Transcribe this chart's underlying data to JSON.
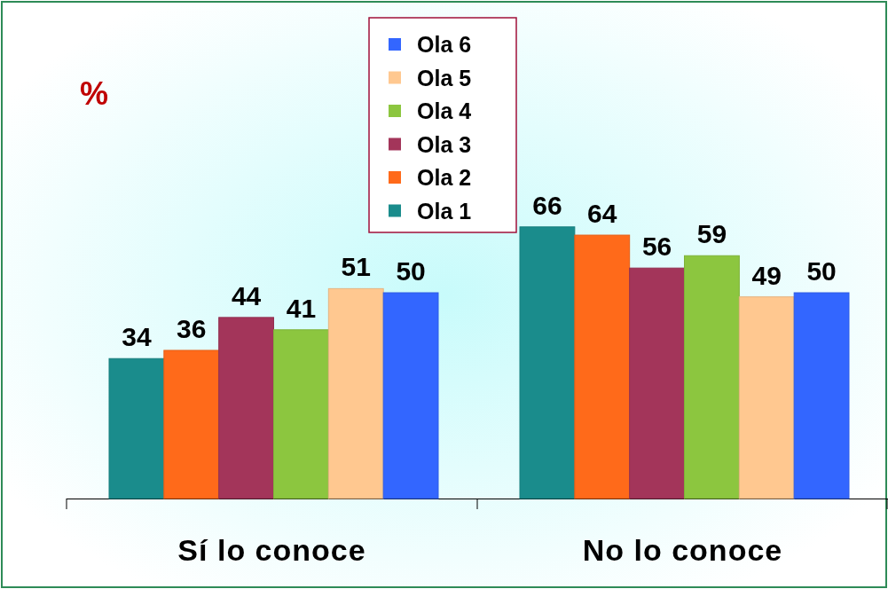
{
  "chart_data": {
    "type": "bar",
    "ylabel": "%",
    "categories": [
      "Sí lo conoce",
      "No lo conoce"
    ],
    "series": [
      {
        "name": "Ola 1",
        "color": "#1a8c8c",
        "values": [
          34,
          66
        ]
      },
      {
        "name": "Ola 2",
        "color": "#ff6a1a",
        "values": [
          36,
          64
        ]
      },
      {
        "name": "Ola 3",
        "color": "#a3355a",
        "values": [
          44,
          56
        ]
      },
      {
        "name": "Ola 4",
        "color": "#8cc63f",
        "values": [
          41,
          59
        ]
      },
      {
        "name": "Ola 5",
        "color": "#ffc890",
        "values": [
          51,
          49
        ]
      },
      {
        "name": "Ola 6",
        "color": "#3366ff",
        "values": [
          50,
          50
        ]
      }
    ],
    "data_labels": true,
    "legend": "top",
    "grid": false
  }
}
